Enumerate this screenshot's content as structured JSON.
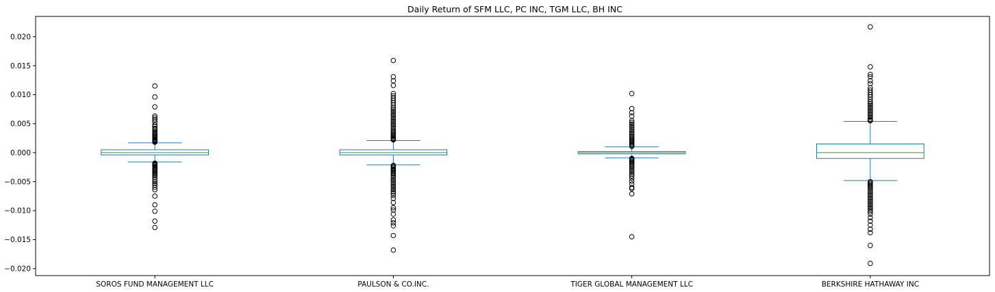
{
  "chart_data": {
    "type": "box",
    "title": "Daily Return of SFM LLC, PC INC, TGM LLC, BH INC",
    "xlabel": "",
    "ylabel": "",
    "ylim": [
      -0.0212,
      0.0235
    ],
    "yticks": [
      {
        "value": 0.02,
        "label": "0.020"
      },
      {
        "value": 0.015,
        "label": "0.015"
      },
      {
        "value": 0.01,
        "label": "0.010"
      },
      {
        "value": 0.005,
        "label": "0.005"
      },
      {
        "value": 0.0,
        "label": "0.000"
      },
      {
        "value": -0.005,
        "label": "−0.005"
      },
      {
        "value": -0.01,
        "label": "−0.010"
      },
      {
        "value": -0.015,
        "label": "−0.015"
      },
      {
        "value": -0.02,
        "label": "−0.020"
      }
    ],
    "grid": false,
    "colors": {
      "box": "#1f77b4",
      "median": "#2ca02c",
      "flier": "#000000",
      "frame": "#000000"
    },
    "categories": [
      "SOROS FUND MANAGEMENT LLC",
      "PAULSON & CO.INC.",
      "TIGER GLOBAL MANAGEMENT LLC",
      "BERKSHIRE HATHAWAY INC"
    ],
    "boxes": [
      {
        "name": "SOROS FUND MANAGEMENT LLC",
        "whislo": -0.0016,
        "q1": -0.0004,
        "med": 0.0,
        "q3": 0.0005,
        "whishi": 0.0017,
        "fliers": [
          0.0115,
          0.0096,
          0.0079,
          0.0063,
          0.006,
          0.0057,
          0.0053,
          0.0048,
          0.0045,
          0.0042,
          0.004,
          0.0037,
          0.0035,
          0.0033,
          0.0031,
          0.003,
          0.0028,
          0.0026,
          0.0025,
          0.0023,
          0.0022,
          0.0021,
          0.002,
          0.0019,
          0.0018,
          -0.0018,
          -0.0019,
          -0.002,
          -0.0021,
          -0.0022,
          -0.0024,
          -0.0025,
          -0.0027,
          -0.0029,
          -0.003,
          -0.0032,
          -0.0034,
          -0.0036,
          -0.0038,
          -0.004,
          -0.0043,
          -0.0047,
          -0.005,
          -0.0053,
          -0.0056,
          -0.006,
          -0.0064,
          -0.0075,
          -0.009,
          -0.0101,
          -0.0118,
          -0.0129
        ]
      },
      {
        "name": "PAULSON & CO.INC.",
        "whislo": -0.0021,
        "q1": -0.0004,
        "med": 0.0,
        "q3": 0.0005,
        "whishi": 0.0021,
        "fliers": [
          0.0159,
          0.0131,
          0.0124,
          0.0116,
          0.0102,
          0.0098,
          0.0094,
          0.009,
          0.0086,
          0.0082,
          0.0078,
          0.0075,
          0.0072,
          0.0069,
          0.0066,
          0.0063,
          0.006,
          0.0057,
          0.0054,
          0.0051,
          0.0048,
          0.0045,
          0.0042,
          0.0039,
          0.0036,
          0.0034,
          0.0032,
          0.003,
          0.0028,
          0.0026,
          0.0024,
          0.0023,
          0.0022,
          -0.0022,
          -0.0023,
          -0.0025,
          -0.0027,
          -0.0029,
          -0.0031,
          -0.0033,
          -0.0035,
          -0.0037,
          -0.004,
          -0.0043,
          -0.0046,
          -0.0049,
          -0.0052,
          -0.0055,
          -0.0058,
          -0.0061,
          -0.0064,
          -0.0067,
          -0.007,
          -0.0074,
          -0.0079,
          -0.0086,
          -0.0095,
          -0.0099,
          -0.0106,
          -0.0116,
          -0.0121,
          -0.0126,
          -0.0143,
          -0.0168
        ]
      },
      {
        "name": "TIGER GLOBAL MANAGEMENT LLC",
        "whislo": -0.0009,
        "q1": -0.0002,
        "med": 0.0,
        "q3": 0.0002,
        "whishi": 0.001,
        "fliers": [
          0.0102,
          0.0076,
          0.0069,
          0.0063,
          0.0055,
          0.0052,
          0.0049,
          0.0046,
          0.0043,
          0.004,
          0.0037,
          0.0034,
          0.0031,
          0.0028,
          0.0026,
          0.0024,
          0.0022,
          0.002,
          0.0018,
          0.0016,
          0.0014,
          0.0012,
          0.0011,
          -0.001,
          -0.0011,
          -0.0012,
          -0.0014,
          -0.0016,
          -0.0018,
          -0.002,
          -0.0022,
          -0.0025,
          -0.0028,
          -0.0031,
          -0.0034,
          -0.0037,
          -0.004,
          -0.0044,
          -0.0049,
          -0.0054,
          -0.006,
          -0.0062,
          -0.0071,
          -0.0145
        ]
      },
      {
        "name": "BERKSHIRE HATHAWAY INC",
        "whislo": -0.0048,
        "q1": -0.001,
        "med": 0.0,
        "q3": 0.0015,
        "whishi": 0.0054,
        "fliers": [
          0.0217,
          0.0148,
          0.0135,
          0.0131,
          0.0124,
          0.0119,
          0.0112,
          0.0108,
          0.0104,
          0.01,
          0.0096,
          0.0092,
          0.0088,
          0.0085,
          0.0082,
          0.0079,
          0.0076,
          0.0073,
          0.007,
          0.0067,
          0.0064,
          0.0061,
          0.0058,
          0.0056,
          0.0055,
          -0.005,
          -0.0052,
          -0.0054,
          -0.0056,
          -0.0058,
          -0.006,
          -0.0063,
          -0.0066,
          -0.0069,
          -0.0072,
          -0.0075,
          -0.0078,
          -0.0081,
          -0.0084,
          -0.0087,
          -0.009,
          -0.0093,
          -0.0096,
          -0.0099,
          -0.0102,
          -0.0106,
          -0.0112,
          -0.0118,
          -0.0125,
          -0.0132,
          -0.0138,
          -0.016,
          -0.0191
        ]
      }
    ]
  }
}
